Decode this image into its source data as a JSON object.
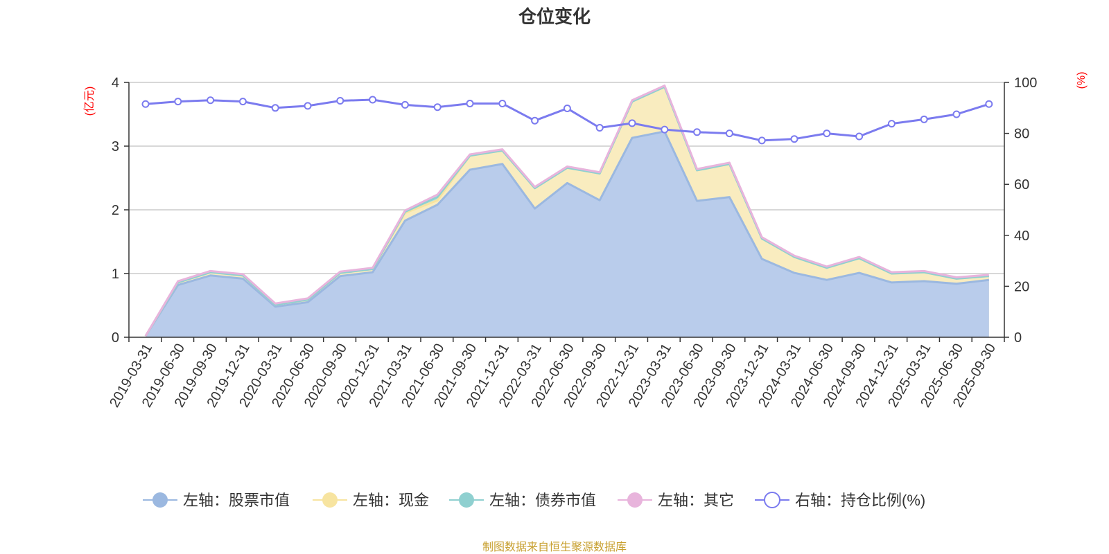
{
  "chart_data": {
    "type": "area",
    "title": "仓位变化",
    "source_note": "制图数据来自恒生聚源数据库",
    "left_axis": {
      "unit": "(亿元)",
      "ylim": [
        0,
        4
      ],
      "ticks": [
        "0",
        "1",
        "2",
        "3",
        "4"
      ]
    },
    "right_axis": {
      "unit": "(%)",
      "ylim": [
        0,
        100
      ],
      "ticks": [
        "0",
        "20",
        "40",
        "60",
        "80",
        "100"
      ]
    },
    "categories": [
      "2019-03-31",
      "2019-06-30",
      "2019-09-30",
      "2019-12-31",
      "2020-03-31",
      "2020-06-30",
      "2020-09-30",
      "2020-12-31",
      "2021-03-31",
      "2021-06-30",
      "2021-09-30",
      "2021-12-31",
      "2022-03-31",
      "2022-06-30",
      "2022-09-30",
      "2022-12-31",
      "2023-03-31",
      "2023-06-30",
      "2023-09-30",
      "2023-12-31",
      "2024-03-31",
      "2024-06-30",
      "2024-09-30",
      "2024-12-31",
      "2025-03-31",
      "2025-06-30",
      "2025-09-30"
    ],
    "series": [
      {
        "name": "左轴：股票市值",
        "axis": "left",
        "type": "area",
        "color": "#9bb8e0",
        "fill": "#b9cceb",
        "values": [
          0.02,
          0.82,
          0.97,
          0.92,
          0.48,
          0.55,
          0.96,
          1.02,
          1.83,
          2.08,
          2.63,
          2.72,
          2.02,
          2.42,
          2.15,
          3.13,
          3.23,
          2.14,
          2.2,
          1.23,
          1.01,
          0.9,
          1.01,
          0.86,
          0.88,
          0.84,
          0.9
        ]
      },
      {
        "name": "左轴：现金",
        "axis": "left",
        "type": "area",
        "color": "#f7e4a0",
        "fill": "#f9ecbf",
        "values": [
          0.0,
          0.04,
          0.05,
          0.05,
          0.03,
          0.04,
          0.05,
          0.05,
          0.12,
          0.07,
          0.22,
          0.21,
          0.32,
          0.24,
          0.42,
          0.57,
          0.7,
          0.48,
          0.52,
          0.32,
          0.25,
          0.19,
          0.23,
          0.14,
          0.14,
          0.08,
          0.06
        ]
      },
      {
        "name": "左轴：债券市值",
        "axis": "left",
        "type": "area",
        "color": "#8fd0d0",
        "fill": "#b5e1e1",
        "values": [
          0.0,
          0.0,
          0.0,
          0.0,
          0.0,
          0.0,
          0.0,
          0.0,
          0.02,
          0.05,
          0.0,
          0.0,
          0.0,
          0.0,
          0.0,
          0.0,
          0.0,
          0.0,
          0.0,
          0.0,
          0.0,
          0.0,
          0.0,
          0.0,
          0.0,
          0.0,
          0.0
        ]
      },
      {
        "name": "左轴：其它",
        "axis": "left",
        "type": "area",
        "color": "#e8b4dc",
        "fill": "#f1cfe9",
        "values": [
          0.0,
          0.02,
          0.02,
          0.02,
          0.02,
          0.02,
          0.02,
          0.02,
          0.02,
          0.04,
          0.02,
          0.02,
          0.02,
          0.02,
          0.02,
          0.02,
          0.02,
          0.02,
          0.02,
          0.02,
          0.02,
          0.02,
          0.02,
          0.02,
          0.02,
          0.02,
          0.02
        ]
      },
      {
        "name": "右轴：持仓比例(%)",
        "axis": "right",
        "type": "line",
        "color": "#7b7bef",
        "values": [
          91.5,
          92.5,
          93,
          92.5,
          90,
          90.8,
          92.8,
          93.2,
          91.2,
          90.3,
          91.7,
          91.7,
          85,
          89.8,
          82.2,
          84,
          81.5,
          80.5,
          80,
          77.2,
          77.8,
          80,
          78.8,
          83.8,
          85.5,
          87.5,
          91.5
        ]
      }
    ]
  }
}
